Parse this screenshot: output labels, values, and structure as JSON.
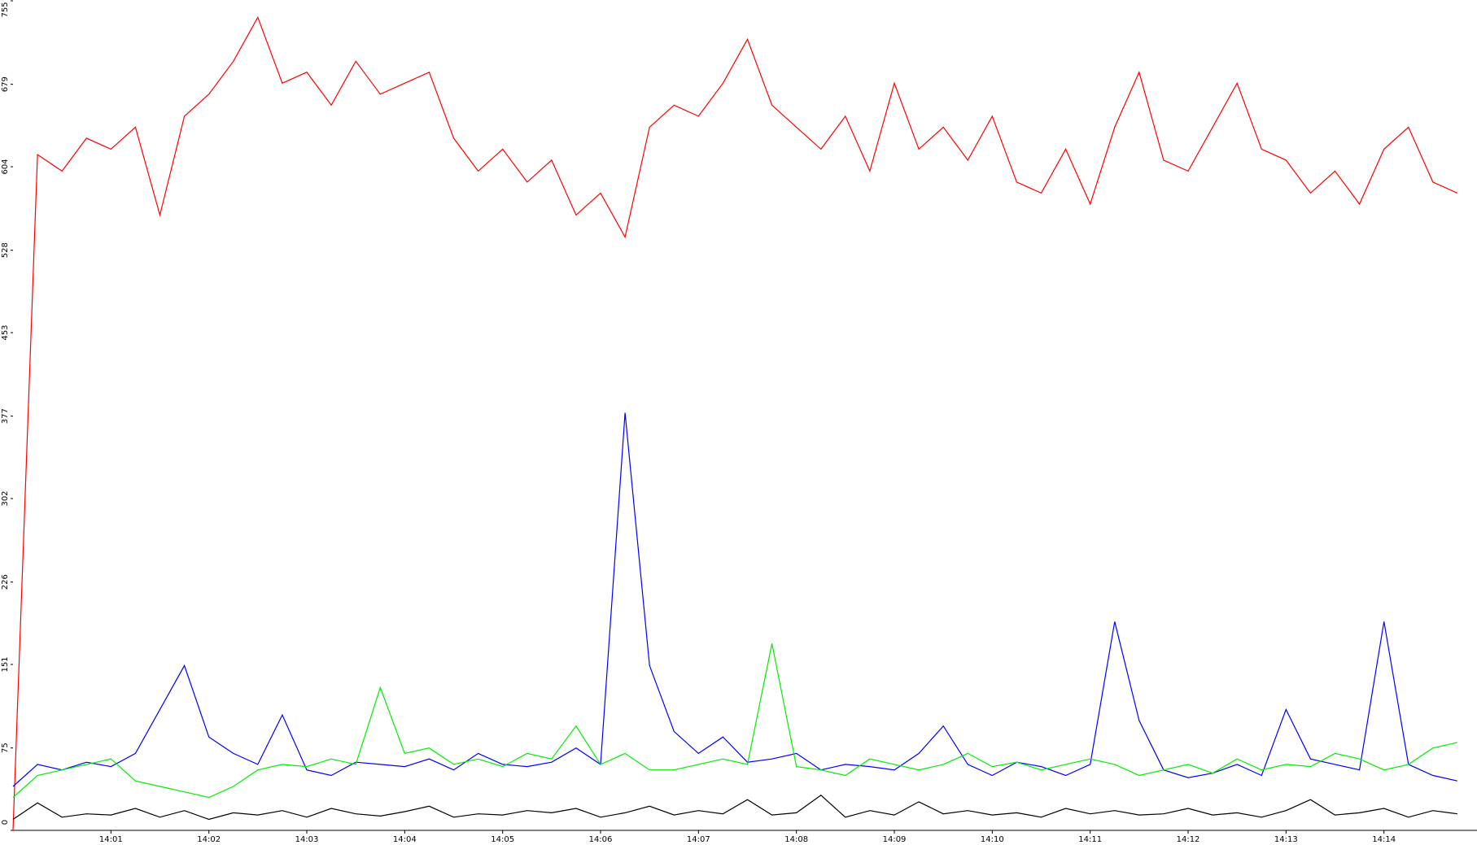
{
  "chart_data": {
    "type": "line",
    "x": [
      0,
      0.25,
      0.5,
      0.75,
      1,
      1.25,
      1.5,
      1.75,
      2,
      2.25,
      2.5,
      2.75,
      3,
      3.25,
      3.5,
      3.75,
      4,
      4.25,
      4.5,
      4.75,
      5,
      5.25,
      5.5,
      5.75,
      6,
      6.25,
      6.5,
      6.75,
      7,
      7.25,
      7.5,
      7.75,
      8,
      8.25,
      8.5,
      8.75,
      9,
      9.25,
      9.5,
      9.75,
      10,
      10.25,
      10.5,
      10.75,
      11,
      11.25,
      11.5,
      11.75,
      12,
      12.25,
      12.5,
      12.75,
      13,
      13.25,
      13.5,
      13.75,
      14,
      14.25,
      14.5,
      14.75
    ],
    "xlim": [
      0,
      14.95
    ],
    "xticks": [
      {
        "value": 1,
        "label": "14:01"
      },
      {
        "value": 2,
        "label": "14:02"
      },
      {
        "value": 3,
        "label": "14:03"
      },
      {
        "value": 4,
        "label": "14:04"
      },
      {
        "value": 5,
        "label": "14:05"
      },
      {
        "value": 6,
        "label": "14:06"
      },
      {
        "value": 7,
        "label": "14:07"
      },
      {
        "value": 8,
        "label": "14:08"
      },
      {
        "value": 9,
        "label": "14:09"
      },
      {
        "value": 10,
        "label": "14:10"
      },
      {
        "value": 11,
        "label": "14:11"
      },
      {
        "value": 12,
        "label": "14:12"
      },
      {
        "value": 13,
        "label": "14:13"
      },
      {
        "value": 14,
        "label": "14:14"
      }
    ],
    "ylim": [
      0,
      755
    ],
    "yticks": [
      0,
      75,
      151,
      226,
      302,
      377,
      453,
      528,
      604,
      679,
      755
    ],
    "series": [
      {
        "color": "#ff0000",
        "values": [
          0,
          615,
          600,
          630,
          620,
          640,
          560,
          650,
          670,
          700,
          740,
          680,
          690,
          660,
          700,
          670,
          680,
          690,
          630,
          600,
          620,
          590,
          610,
          560,
          580,
          540,
          640,
          660,
          650,
          680,
          720,
          660,
          640,
          620,
          650,
          600,
          680,
          620,
          640,
          610,
          650,
          590,
          580,
          620,
          570,
          640,
          690,
          610,
          600,
          640,
          680,
          620,
          610,
          580,
          600,
          570,
          620,
          640,
          590,
          580
        ]
      },
      {
        "color": "#0000ff",
        "values": [
          40,
          60,
          55,
          62,
          58,
          70,
          110,
          150,
          85,
          70,
          60,
          105,
          55,
          50,
          62,
          60,
          58,
          65,
          55,
          70,
          60,
          58,
          62,
          75,
          60,
          380,
          150,
          90,
          70,
          85,
          62,
          65,
          70,
          55,
          60,
          58,
          55,
          70,
          95,
          60,
          50,
          62,
          58,
          50,
          60,
          190,
          100,
          55,
          48,
          52,
          60,
          50,
          110,
          65,
          60,
          55,
          190,
          60,
          50,
          45
        ]
      },
      {
        "color": "#00ee00",
        "values": [
          30,
          50,
          55,
          60,
          65,
          45,
          40,
          35,
          30,
          40,
          55,
          60,
          58,
          65,
          60,
          130,
          70,
          75,
          60,
          65,
          58,
          70,
          65,
          95,
          60,
          70,
          55,
          55,
          60,
          65,
          60,
          170,
          58,
          55,
          50,
          65,
          60,
          55,
          60,
          70,
          58,
          62,
          55,
          60,
          65,
          60,
          50,
          55,
          60,
          52,
          65,
          55,
          60,
          58,
          70,
          65,
          55,
          60,
          75,
          80
        ]
      },
      {
        "color": "#000000",
        "values": [
          10,
          25,
          12,
          15,
          14,
          20,
          12,
          18,
          10,
          16,
          14,
          18,
          12,
          20,
          15,
          13,
          17,
          22,
          12,
          15,
          14,
          18,
          16,
          20,
          12,
          16,
          22,
          14,
          18,
          15,
          28,
          14,
          16,
          32,
          12,
          18,
          14,
          26,
          15,
          18,
          14,
          16,
          12,
          20,
          15,
          18,
          14,
          15,
          20,
          14,
          16,
          12,
          18,
          28,
          14,
          16,
          20,
          12,
          18,
          15
        ]
      }
    ]
  }
}
